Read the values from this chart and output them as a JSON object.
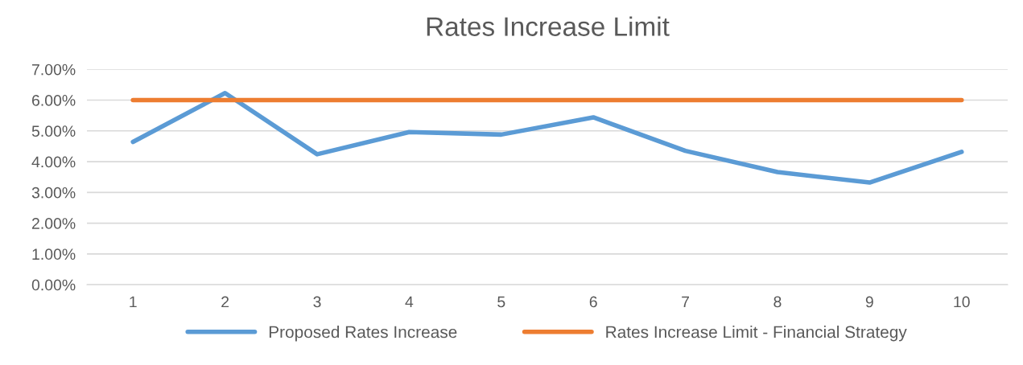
{
  "chart_data": {
    "type": "line",
    "title": "Rates Increase Limit",
    "categories": [
      "1",
      "2",
      "3",
      "4",
      "5",
      "6",
      "7",
      "8",
      "9",
      "10"
    ],
    "series": [
      {
        "name": "Proposed Rates Increase",
        "color": "#5b9bd5",
        "values": [
          4.64,
          6.23,
          4.24,
          4.96,
          4.88,
          5.44,
          4.35,
          3.66,
          3.32,
          4.32
        ]
      },
      {
        "name": "Rates Increase Limit - Financial Strategy",
        "color": "#ed7d31",
        "values": [
          6,
          6,
          6,
          6,
          6,
          6,
          6,
          6,
          6,
          6
        ]
      }
    ],
    "ylim": [
      0,
      7
    ],
    "yticks": [
      {
        "value": 0,
        "label": "0.00%"
      },
      {
        "value": 1,
        "label": "1.00%"
      },
      {
        "value": 2,
        "label": "2.00%"
      },
      {
        "value": 3,
        "label": "3.00%"
      },
      {
        "value": 4,
        "label": "4.00%"
      },
      {
        "value": 5,
        "label": "5.00%"
      },
      {
        "value": 6,
        "label": "6.00%"
      },
      {
        "value": 7,
        "label": "7.00%"
      }
    ],
    "grid": "y",
    "legend": "bottom",
    "marker": "none",
    "line_style": "solid"
  }
}
